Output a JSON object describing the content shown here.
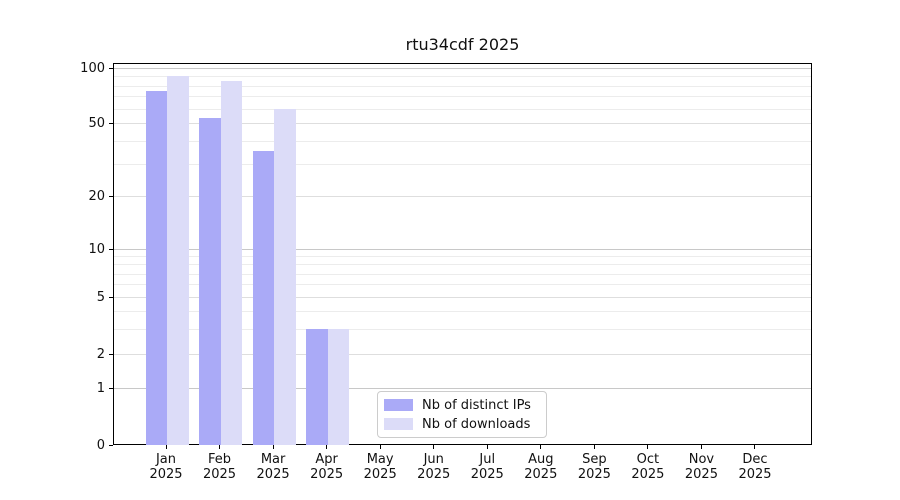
{
  "title": "rtu34cdf 2025",
  "chart_data": {
    "type": "bar",
    "title": "rtu34cdf 2025",
    "categories": [
      "Jan",
      "Feb",
      "Mar",
      "Apr",
      "May",
      "Jun",
      "Jul",
      "Aug",
      "Sep",
      "Oct",
      "Nov",
      "Dec"
    ],
    "year_label": "2025",
    "series": [
      {
        "name": "Nb of distinct IPs",
        "color": "#aaaaf7",
        "values": [
          75,
          53,
          35,
          3,
          0,
          0,
          0,
          0,
          0,
          0,
          0,
          0
        ]
      },
      {
        "name": "Nb of downloads",
        "color": "#dcdcf8",
        "values": [
          90,
          85,
          60,
          3,
          0,
          0,
          0,
          0,
          0,
          0,
          0,
          0
        ]
      }
    ],
    "y_axis": {
      "scale": "log-like with linear segment to 0",
      "tick_values": [
        0,
        1,
        2,
        5,
        10,
        20,
        50,
        100
      ],
      "tick_labels": [
        "0",
        "1",
        "2",
        "5",
        "10",
        "20",
        "50",
        "100"
      ],
      "minor_gridline_values": [
        3,
        4,
        6,
        7,
        8,
        9,
        30,
        40,
        60,
        70,
        80,
        90
      ],
      "ylim": [
        0,
        110
      ]
    },
    "x_axis": {
      "tick_label_line1": [
        "Jan",
        "Feb",
        "Mar",
        "Apr",
        "May",
        "Jun",
        "Jul",
        "Aug",
        "Sep",
        "Oct",
        "Nov",
        "Dec"
      ],
      "tick_label_line2": "2025"
    },
    "legend": {
      "position": "inside-bottom-center",
      "entries": [
        "Nb of distinct IPs",
        "Nb of downloads"
      ]
    },
    "grid": true
  }
}
